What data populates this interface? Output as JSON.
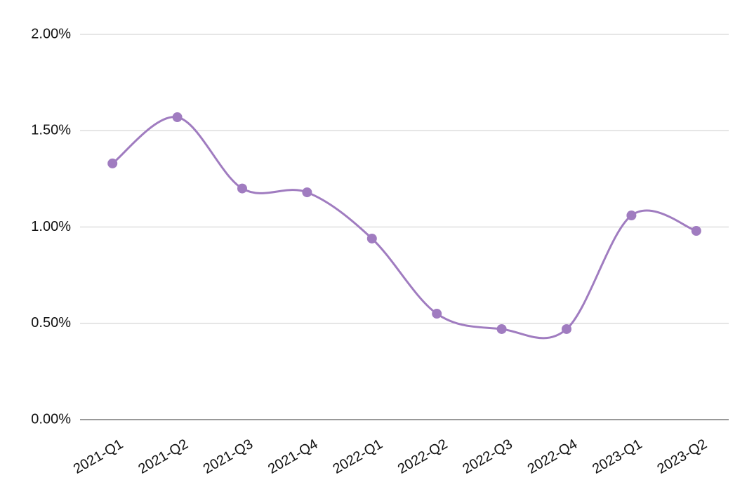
{
  "chart_data": {
    "type": "line",
    "categories": [
      "2021-Q1",
      "2021-Q2",
      "2021-Q3",
      "2021-Q4",
      "2022-Q1",
      "2022-Q2",
      "2022-Q3",
      "2022-Q4",
      "2023-Q1",
      "2023-Q2"
    ],
    "values": [
      1.33,
      1.57,
      1.2,
      1.18,
      0.94,
      0.55,
      0.47,
      0.47,
      1.06,
      0.98
    ],
    "color": "#a07cc0",
    "ylim": [
      0,
      2
    ],
    "yticks": [
      {
        "value": 0,
        "label": "0.00%"
      },
      {
        "value": 0.5,
        "label": "0.50%"
      },
      {
        "value": 1,
        "label": "1.00%"
      },
      {
        "value": 1.5,
        "label": "1.50%"
      },
      {
        "value": 2,
        "label": "2.00%"
      }
    ],
    "grid": true,
    "smooth": true
  }
}
